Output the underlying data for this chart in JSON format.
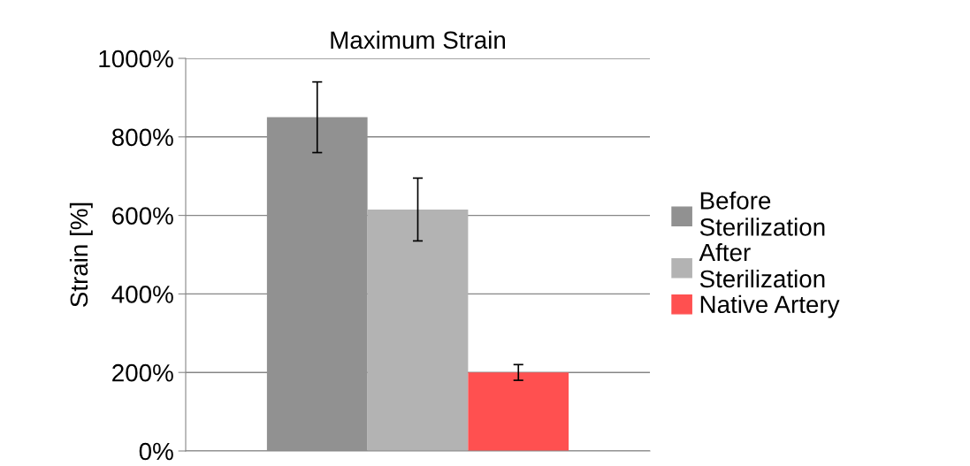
{
  "chart_data": {
    "type": "bar",
    "title": "Maximum Strain",
    "ylabel": "Strain [%]",
    "categories": [
      null
    ],
    "series": [
      {
        "name": "Before Sterilization",
        "color": "#919191",
        "values": [
          850
        ],
        "errors": [
          90
        ]
      },
      {
        "name": "After Sterilization",
        "color": "#b3b3b3",
        "values": [
          615
        ],
        "errors": [
          80
        ]
      },
      {
        "name": "Native Artery",
        "color": "#ff5050",
        "values": [
          200
        ],
        "errors": [
          20
        ]
      }
    ],
    "ylim": [
      0,
      1000
    ],
    "yticks": [
      {
        "value": 0,
        "label": "0%"
      },
      {
        "value": 200,
        "label": "200%"
      },
      {
        "value": 400,
        "label": "400%"
      },
      {
        "value": 600,
        "label": "600%"
      },
      {
        "value": 800,
        "label": "800%"
      },
      {
        "value": 1000,
        "label": "1000%"
      }
    ],
    "grid": "y",
    "legend": "right"
  }
}
